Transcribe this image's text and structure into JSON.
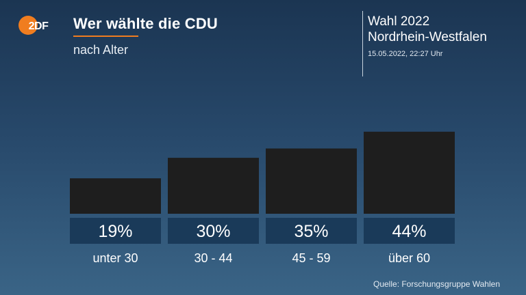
{
  "header": {
    "logo_text": "ZDF",
    "title": "Wer wählte die CDU",
    "subtitle": "nach Alter"
  },
  "info": {
    "line1": "Wahl 2022",
    "line2": "Nordrhein-Westfalen",
    "timestamp": "15.05.2022, 22:27 Uhr"
  },
  "colors": {
    "bar": "#1e1e1e",
    "label_box": "#1a3a59",
    "accent": "#f07d1f"
  },
  "chart_data": {
    "type": "bar",
    "categories": [
      "unter 30",
      "30 - 44",
      "45 - 59",
      "über 60"
    ],
    "values": [
      19,
      30,
      35,
      44
    ],
    "value_labels": [
      "19%",
      "30%",
      "35%",
      "44%"
    ],
    "unit": "%"
  },
  "footer": {
    "source": "Quelle: Forschungsgruppe Wahlen"
  }
}
